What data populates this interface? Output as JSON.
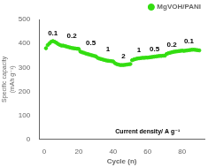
{
  "chart_data": {
    "type": "scatter",
    "xlabel": "Cycle (n)",
    "ylabel": "Specific capacity\n(mAh g⁻¹)",
    "xlim": [
      -3,
      93
    ],
    "ylim": [
      0,
      500
    ],
    "xticks": [
      0,
      20,
      40,
      60,
      80
    ],
    "yticks": [
      0,
      100,
      200,
      300,
      400,
      500
    ],
    "grid": false,
    "legend": "upper right",
    "series": [
      {
        "name": "MgVOH/PANI",
        "color": "#33dd11",
        "marker": "circle",
        "x": [
          1,
          2,
          3,
          4,
          5,
          6,
          7,
          8,
          9,
          10,
          11,
          12,
          13,
          14,
          15,
          16,
          17,
          18,
          19,
          20,
          21,
          22,
          23,
          24,
          25,
          26,
          27,
          28,
          29,
          30,
          31,
          32,
          33,
          34,
          35,
          36,
          37,
          38,
          39,
          40,
          41,
          42,
          43,
          44,
          45,
          46,
          47,
          48,
          49,
          50,
          51,
          52,
          53,
          54,
          55,
          56,
          57,
          58,
          59,
          60,
          61,
          62,
          63,
          64,
          65,
          66,
          67,
          68,
          69,
          70,
          71,
          72,
          73,
          74,
          75,
          76,
          77,
          78,
          79,
          80,
          81,
          82,
          83,
          84,
          85,
          86,
          87,
          88,
          89,
          90
        ],
        "values": [
          380,
          393,
          400,
          407,
          410,
          407,
          403,
          398,
          394,
          391,
          391,
          389,
          387,
          385,
          383,
          381,
          380,
          379,
          378,
          377,
          366,
          363,
          361,
          358,
          356,
          354,
          352,
          350,
          348,
          346,
          340,
          337,
          335,
          333,
          331,
          329,
          328,
          327,
          326,
          325,
          318,
          314,
          312,
          310,
          310,
          310,
          311,
          312,
          313,
          314,
          330,
          333,
          335,
          337,
          338,
          339,
          340,
          340,
          341,
          341,
          342,
          343,
          344,
          345,
          346,
          347,
          348,
          348,
          349,
          349,
          356,
          359,
          361,
          363,
          365,
          366,
          367,
          368,
          369,
          370,
          369,
          370,
          371,
          372,
          373,
          374,
          374,
          373,
          372,
          371
        ]
      }
    ],
    "annotations": [
      {
        "text": "0.1",
        "x": 5,
        "y": 428
      },
      {
        "text": "0.2",
        "x": 16,
        "y": 415
      },
      {
        "text": "0.5",
        "x": 27,
        "y": 385
      },
      {
        "text": "1",
        "x": 37,
        "y": 362
      },
      {
        "text": "2",
        "x": 46,
        "y": 333
      },
      {
        "text": "1",
        "x": 55,
        "y": 358
      },
      {
        "text": "0.5",
        "x": 64,
        "y": 362
      },
      {
        "text": "0.2",
        "x": 74,
        "y": 380
      },
      {
        "text": "0.1",
        "x": 84,
        "y": 395
      },
      {
        "text": "Current density/ A g⁻¹",
        "x": 60,
        "y": 20
      }
    ]
  }
}
